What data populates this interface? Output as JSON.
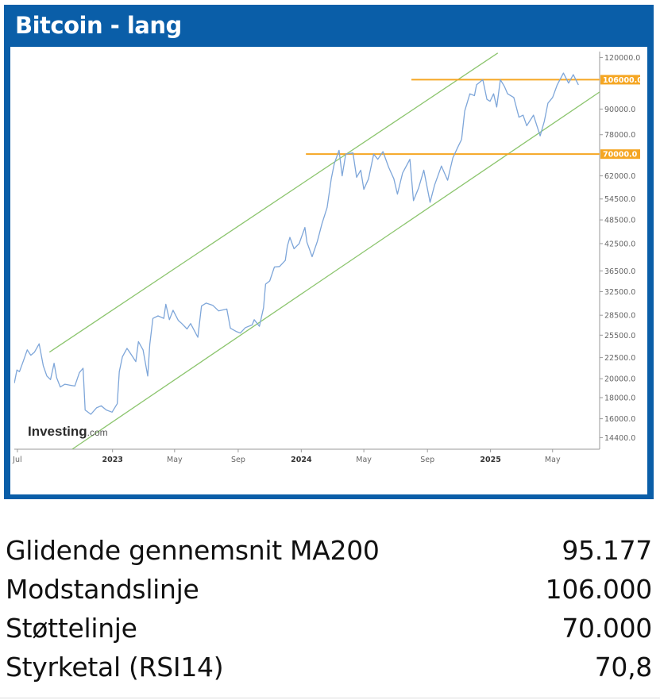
{
  "header": {
    "title": "Bitcoin - lang"
  },
  "watermark": {
    "brand": "Investing",
    "suffix": ".com"
  },
  "chart_data": {
    "type": "line",
    "title": "",
    "xlabel": "",
    "ylabel": "",
    "y_scale": "log",
    "ylim": [
      13500,
      124000
    ],
    "x_range": [
      "2022-06-25",
      "2025-07-31"
    ],
    "x_ticks": [
      {
        "date": "2022-07-01",
        "label": "Jul",
        "bold": false
      },
      {
        "date": "2023-01-01",
        "label": "2023",
        "bold": true
      },
      {
        "date": "2023-05-01",
        "label": "May",
        "bold": false
      },
      {
        "date": "2023-09-01",
        "label": "Sep",
        "bold": false
      },
      {
        "date": "2024-01-01",
        "label": "2024",
        "bold": true
      },
      {
        "date": "2024-05-01",
        "label": "May",
        "bold": false
      },
      {
        "date": "2024-09-01",
        "label": "Sep",
        "bold": false
      },
      {
        "date": "2025-01-01",
        "label": "2025",
        "bold": true
      },
      {
        "date": "2025-05-01",
        "label": "May",
        "bold": false
      }
    ],
    "y_ticks": [
      {
        "value": 14400,
        "label": "14400.0"
      },
      {
        "value": 16000,
        "label": "16000.0"
      },
      {
        "value": 18000,
        "label": "18000.0"
      },
      {
        "value": 20000,
        "label": "20000.0"
      },
      {
        "value": 22500,
        "label": "22500.0"
      },
      {
        "value": 25500,
        "label": "25500.0"
      },
      {
        "value": 28500,
        "label": "28500.0"
      },
      {
        "value": 32500,
        "label": "32500.0"
      },
      {
        "value": 36500,
        "label": "36500.0"
      },
      {
        "value": 42500,
        "label": "42500.0"
      },
      {
        "value": 48500,
        "label": "48500.0"
      },
      {
        "value": 54500,
        "label": "54500.0"
      },
      {
        "value": 62000,
        "label": "62000.0"
      },
      {
        "value": 78000,
        "label": "78000.0"
      },
      {
        "value": 90000,
        "label": "90000.0"
      },
      {
        "value": 120000,
        "label": "120000.0"
      }
    ],
    "horizontal_lines": [
      {
        "value": 106000,
        "label": "106000.0",
        "from": "2024-08-01",
        "color": "#f5a623"
      },
      {
        "value": 70000,
        "label": "70000.0",
        "from": "2024-01-10",
        "color": "#f5a623"
      }
    ],
    "channel_lines": [
      {
        "name": "upper",
        "points": [
          [
            "2022-09-01",
            23200
          ],
          [
            "2025-01-15",
            123000
          ]
        ],
        "color": "#8cc56e"
      },
      {
        "name": "lower",
        "points": [
          [
            "2022-10-15",
            13500
          ],
          [
            "2025-07-31",
            99000
          ]
        ],
        "color": "#8cc56e"
      }
    ],
    "series": [
      {
        "color": "#7ea6d9",
        "points": [
          [
            "2022-06-25",
            19500
          ],
          [
            "2022-06-30",
            21000
          ],
          [
            "2022-07-05",
            20800
          ],
          [
            "2022-07-12",
            22000
          ],
          [
            "2022-07-20",
            23500
          ],
          [
            "2022-07-27",
            22800
          ],
          [
            "2022-08-03",
            23200
          ],
          [
            "2022-08-12",
            24300
          ],
          [
            "2022-08-20",
            21500
          ],
          [
            "2022-08-27",
            20300
          ],
          [
            "2022-09-03",
            19900
          ],
          [
            "2022-09-10",
            21800
          ],
          [
            "2022-09-15",
            20100
          ],
          [
            "2022-09-22",
            19100
          ],
          [
            "2022-10-01",
            19400
          ],
          [
            "2022-10-10",
            19300
          ],
          [
            "2022-10-20",
            19200
          ],
          [
            "2022-10-29",
            20700
          ],
          [
            "2022-11-05",
            21200
          ],
          [
            "2022-11-09",
            16800
          ],
          [
            "2022-11-20",
            16400
          ],
          [
            "2022-12-01",
            17000
          ],
          [
            "2022-12-10",
            17200
          ],
          [
            "2022-12-20",
            16800
          ],
          [
            "2022-12-31",
            16600
          ],
          [
            "2023-01-10",
            17400
          ],
          [
            "2023-01-14",
            20800
          ],
          [
            "2023-01-20",
            22600
          ],
          [
            "2023-01-29",
            23700
          ],
          [
            "2023-02-05",
            23000
          ],
          [
            "2023-02-15",
            22000
          ],
          [
            "2023-02-20",
            24600
          ],
          [
            "2023-03-01",
            23500
          ],
          [
            "2023-03-10",
            20300
          ],
          [
            "2023-03-14",
            24200
          ],
          [
            "2023-03-20",
            28000
          ],
          [
            "2023-03-30",
            28400
          ],
          [
            "2023-04-10",
            28000
          ],
          [
            "2023-04-14",
            30300
          ],
          [
            "2023-04-21",
            27800
          ],
          [
            "2023-04-28",
            29300
          ],
          [
            "2023-05-08",
            27700
          ],
          [
            "2023-05-15",
            27200
          ],
          [
            "2023-05-25",
            26400
          ],
          [
            "2023-06-01",
            27200
          ],
          [
            "2023-06-15",
            25200
          ],
          [
            "2023-06-22",
            30000
          ],
          [
            "2023-07-01",
            30500
          ],
          [
            "2023-07-14",
            30100
          ],
          [
            "2023-07-25",
            29200
          ],
          [
            "2023-08-10",
            29500
          ],
          [
            "2023-08-17",
            26500
          ],
          [
            "2023-08-29",
            26000
          ],
          [
            "2023-09-05",
            25800
          ],
          [
            "2023-09-15",
            26600
          ],
          [
            "2023-09-28",
            27000
          ],
          [
            "2023-10-02",
            27800
          ],
          [
            "2023-10-12",
            26800
          ],
          [
            "2023-10-20",
            29700
          ],
          [
            "2023-10-24",
            33900
          ],
          [
            "2023-11-01",
            34500
          ],
          [
            "2023-11-10",
            37300
          ],
          [
            "2023-11-20",
            37400
          ],
          [
            "2023-12-01",
            38700
          ],
          [
            "2023-12-05",
            41900
          ],
          [
            "2023-12-10",
            44000
          ],
          [
            "2023-12-18",
            41300
          ],
          [
            "2023-12-28",
            42500
          ],
          [
            "2024-01-08",
            46500
          ],
          [
            "2024-01-12",
            42800
          ],
          [
            "2024-01-22",
            39500
          ],
          [
            "2024-02-01",
            43000
          ],
          [
            "2024-02-10",
            47500
          ],
          [
            "2024-02-20",
            52000
          ],
          [
            "2024-02-28",
            61000
          ],
          [
            "2024-03-05",
            66500
          ],
          [
            "2024-03-14",
            71500
          ],
          [
            "2024-03-20",
            62000
          ],
          [
            "2024-03-27",
            70000
          ],
          [
            "2024-04-10",
            70500
          ],
          [
            "2024-04-17",
            61500
          ],
          [
            "2024-04-25",
            64000
          ],
          [
            "2024-05-01",
            57500
          ],
          [
            "2024-05-10",
            61000
          ],
          [
            "2024-05-20",
            70000
          ],
          [
            "2024-05-28",
            68000
          ],
          [
            "2024-06-07",
            71000
          ],
          [
            "2024-06-18",
            65000
          ],
          [
            "2024-06-28",
            61000
          ],
          [
            "2024-07-05",
            56000
          ],
          [
            "2024-07-15",
            63000
          ],
          [
            "2024-07-29",
            68000
          ],
          [
            "2024-08-05",
            54000
          ],
          [
            "2024-08-15",
            58000
          ],
          [
            "2024-08-25",
            64000
          ],
          [
            "2024-09-06",
            53500
          ],
          [
            "2024-09-15",
            59000
          ],
          [
            "2024-09-28",
            65500
          ],
          [
            "2024-10-10",
            60500
          ],
          [
            "2024-10-20",
            68500
          ],
          [
            "2024-10-29",
            72500
          ],
          [
            "2024-11-06",
            76000
          ],
          [
            "2024-11-12",
            89000
          ],
          [
            "2024-11-22",
            98000
          ],
          [
            "2024-12-01",
            97000
          ],
          [
            "2024-12-05",
            103000
          ],
          [
            "2024-12-17",
            106000
          ],
          [
            "2024-12-25",
            95000
          ],
          [
            "2024-12-31",
            94000
          ],
          [
            "2025-01-07",
            98000
          ],
          [
            "2025-01-13",
            91000
          ],
          [
            "2025-01-20",
            106000
          ],
          [
            "2025-01-28",
            102000
          ],
          [
            "2025-02-03",
            98000
          ],
          [
            "2025-02-15",
            96000
          ],
          [
            "2025-02-25",
            86000
          ],
          [
            "2025-03-05",
            87000
          ],
          [
            "2025-03-12",
            82000
          ],
          [
            "2025-03-25",
            87000
          ],
          [
            "2025-04-07",
            77500
          ],
          [
            "2025-04-15",
            84000
          ],
          [
            "2025-04-22",
            93000
          ],
          [
            "2025-05-01",
            96000
          ],
          [
            "2025-05-10",
            103000
          ],
          [
            "2025-05-22",
            110000
          ],
          [
            "2025-06-01",
            104000
          ],
          [
            "2025-06-10",
            109000
          ],
          [
            "2025-06-20",
            103000
          ]
        ]
      }
    ]
  },
  "stats": [
    {
      "label": "Glidende gennemsnit MA200",
      "value": "95.177"
    },
    {
      "label": "Modstandslinje",
      "value": "106.000"
    },
    {
      "label": "Støttelinje",
      "value": "70.000"
    },
    {
      "label": "Styrketal (RSI14)",
      "value": "70,8"
    }
  ]
}
